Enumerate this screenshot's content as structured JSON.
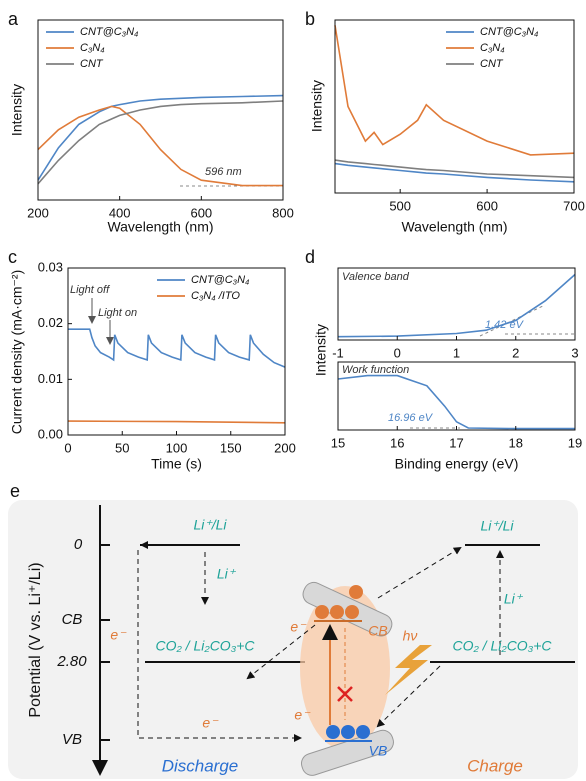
{
  "chart_data": [
    {
      "type": "line",
      "panel": "a",
      "xlabel": "Wavelength (nm)",
      "ylabel": "Intensity",
      "xlim": [
        200,
        800
      ],
      "xticks": [
        200,
        400,
        600,
        800
      ],
      "ylim": [
        0,
        1
      ],
      "legend": "upper left",
      "annotations": [
        "596 nm"
      ],
      "x": [
        200,
        250,
        300,
        350,
        380,
        400,
        450,
        500,
        550,
        600,
        700,
        800
      ],
      "series": [
        {
          "name": "CNT@C₃N₄",
          "color": "#4f86c6",
          "values": [
            0.11,
            0.29,
            0.42,
            0.49,
            0.52,
            0.53,
            0.55,
            0.56,
            0.565,
            0.57,
            0.575,
            0.58
          ]
        },
        {
          "name": "C₃N₄",
          "color": "#e07b39",
          "values": [
            0.28,
            0.39,
            0.46,
            0.5,
            0.52,
            0.51,
            0.42,
            0.28,
            0.17,
            0.11,
            0.08,
            0.08
          ]
        },
        {
          "name": "CNT",
          "color": "#7f7f7f",
          "values": [
            0.09,
            0.22,
            0.33,
            0.42,
            0.45,
            0.47,
            0.5,
            0.52,
            0.53,
            0.535,
            0.54,
            0.55
          ]
        }
      ]
    },
    {
      "type": "line",
      "panel": "b",
      "xlabel": "Wavelength (nm)",
      "ylabel": "Intensity",
      "xlim": [
        425,
        700
      ],
      "xticks": [
        500,
        600,
        700
      ],
      "ylim": [
        0,
        1
      ],
      "legend": "upper right",
      "x": [
        425,
        440,
        460,
        470,
        480,
        500,
        520,
        530,
        550,
        600,
        650,
        700
      ],
      "series": [
        {
          "name": "CNT@C₃N₄",
          "color": "#4f86c6",
          "values": [
            0.17,
            0.16,
            0.15,
            0.145,
            0.14,
            0.13,
            0.12,
            0.115,
            0.11,
            0.09,
            0.075,
            0.065
          ]
        },
        {
          "name": "C₃N₄",
          "color": "#e07b39",
          "values": [
            0.97,
            0.5,
            0.3,
            0.35,
            0.28,
            0.34,
            0.42,
            0.51,
            0.42,
            0.3,
            0.22,
            0.23
          ]
        },
        {
          "name": "CNT",
          "color": "#7f7f7f",
          "values": [
            0.19,
            0.18,
            0.17,
            0.165,
            0.16,
            0.15,
            0.14,
            0.135,
            0.13,
            0.11,
            0.1,
            0.09
          ]
        }
      ]
    },
    {
      "type": "line",
      "panel": "c",
      "xlabel": "Time (s)",
      "ylabel": "Current density (mA·cm⁻²)",
      "xlim": [
        0,
        200
      ],
      "xticks": [
        0,
        50,
        100,
        150,
        200
      ],
      "ylim": [
        0,
        0.03
      ],
      "yticks": [
        {
          "value": 0,
          "label": "0.00"
        },
        0.01,
        0.02,
        0.03
      ],
      "legend": "upper right",
      "annotations": [
        "Light off",
        "Light on"
      ],
      "series": [
        {
          "name": "CNT@C₃N₄",
          "color": "#4f86c6",
          "x": [
            0,
            20,
            22,
            25,
            30,
            38,
            42,
            43,
            46,
            55,
            65,
            73,
            74,
            77,
            86,
            96,
            104,
            105,
            108,
            117,
            127,
            135,
            136,
            139,
            148,
            158,
            167,
            168,
            171,
            180,
            190,
            200
          ],
          "values": [
            0.019,
            0.019,
            0.0175,
            0.016,
            0.0148,
            0.014,
            0.0135,
            0.018,
            0.0165,
            0.0148,
            0.014,
            0.0135,
            0.018,
            0.0165,
            0.0148,
            0.014,
            0.0135,
            0.018,
            0.0165,
            0.0148,
            0.014,
            0.0135,
            0.018,
            0.0165,
            0.0148,
            0.014,
            0.0135,
            0.018,
            0.0165,
            0.0145,
            0.013,
            0.0122
          ]
        },
        {
          "name": "C₃N₄ /ITO",
          "color": "#e07b39",
          "x": [
            0,
            100,
            200
          ],
          "values": [
            0.0025,
            0.0024,
            0.0022
          ]
        }
      ]
    },
    {
      "type": "line",
      "panel": "d",
      "ylabel": "Intensity",
      "xlim": [
        -1,
        3
      ],
      "xticks": [
        -1,
        0,
        1,
        2,
        3
      ],
      "ylim": [
        0,
        1.1
      ],
      "annotations": [
        "Valence band",
        "1.42 eV"
      ],
      "x": [
        -1,
        0,
        1,
        1.5,
        2,
        2.5,
        3
      ],
      "series": [
        {
          "color": "#4f86c6",
          "values": [
            0.05,
            0.06,
            0.1,
            0.15,
            0.3,
            0.6,
            1.0
          ]
        }
      ]
    },
    {
      "type": "line",
      "xlabel": "Binding energy (eV)",
      "xlim": [
        15,
        19
      ],
      "xticks": [
        15,
        16,
        17,
        18,
        19
      ],
      "ylim": [
        0,
        1
      ],
      "annotations": [
        "Work function",
        "16.96 eV"
      ],
      "x": [
        15,
        15.5,
        16,
        16.5,
        16.8,
        17,
        17.2,
        18,
        19
      ],
      "series": [
        {
          "color": "#4f86c6",
          "values": [
            0.75,
            0.8,
            0.8,
            0.65,
            0.35,
            0.12,
            0.03,
            0.02,
            0.02
          ]
        }
      ]
    }
  ],
  "diagram": {
    "panel": "e",
    "axis_label": "Potential (V vs. Li⁺/Li)",
    "levels": [
      "0",
      "CB",
      "2.80",
      "VB"
    ],
    "left_couple": "Li⁺/Li",
    "right_couple": "Li⁺/Li",
    "ion_left": "Li⁺",
    "ion_right": "Li⁺",
    "electrons": [
      "e⁻",
      "e⁻",
      "e⁻",
      "e⁻"
    ],
    "left_reaction": "CO₂ / Li₂CO₃+C",
    "right_reaction": "CO₂ / Li₂CO₃+C",
    "cb": "CB",
    "vb": "VB",
    "photon": "hν",
    "discharge": "Discharge",
    "charge": "Charge"
  }
}
